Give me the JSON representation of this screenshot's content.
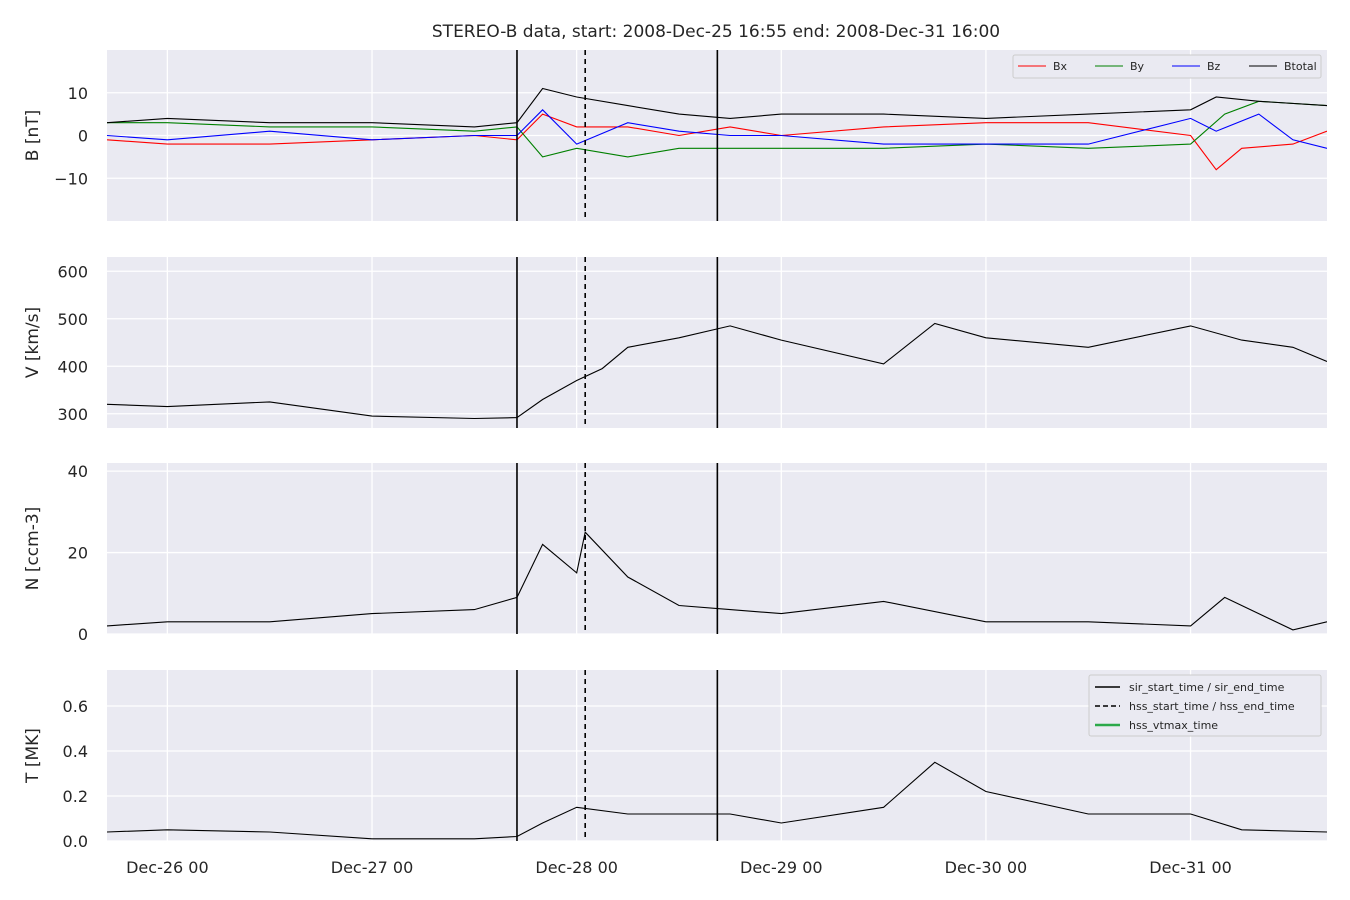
{
  "chart_data": {
    "type": "line",
    "title": "STEREO-B data, start: 2008-Dec-25 16:55  end: 2008-Dec-31 16:00",
    "x_range": [
      "2008-12-25T16:55",
      "2008-12-31T16:00"
    ],
    "x_ticks": [
      {
        "t": "2008-12-26T00:00",
        "label": "Dec-26 00"
      },
      {
        "t": "2008-12-27T00:00",
        "label": "Dec-27 00"
      },
      {
        "t": "2008-12-28T00:00",
        "label": "Dec-28 00"
      },
      {
        "t": "2008-12-29T00:00",
        "label": "Dec-29 00"
      },
      {
        "t": "2008-12-30T00:00",
        "label": "Dec-30 00"
      },
      {
        "t": "2008-12-31T00:00",
        "label": "Dec-31 00"
      }
    ],
    "markers": {
      "sir_start_time": "2008-12-27T17:00",
      "sir_end_time": "2008-12-28T16:30",
      "hss_start_time": "2008-12-28T01:00"
    },
    "legend_marker_labels": [
      "sir_start_time / sir_end_time",
      "hss_start_time / hss_end_time",
      "hss_vtmax_time"
    ],
    "grid": true,
    "panels": [
      {
        "id": "B",
        "ylabel": "B [nT]",
        "ylim": [
          -20,
          20
        ],
        "yticks": [
          {
            "v": 10,
            "label": "10"
          },
          {
            "v": 0,
            "label": "0"
          },
          {
            "v": -10,
            "label": "−10"
          }
        ],
        "legend": "top-right",
        "series": [
          {
            "name": "Bx",
            "color": "#ff0000",
            "points": [
              [
                "2008-12-25T16:55",
                -1
              ],
              [
                "2008-12-26T00:00",
                -2
              ],
              [
                "2008-12-26T12:00",
                -2
              ],
              [
                "2008-12-27T00:00",
                -1
              ],
              [
                "2008-12-27T12:00",
                0
              ],
              [
                "2008-12-27T17:00",
                -1
              ],
              [
                "2008-12-27T20:00",
                5
              ],
              [
                "2008-12-28T00:00",
                2
              ],
              [
                "2008-12-28T06:00",
                2
              ],
              [
                "2008-12-28T12:00",
                0
              ],
              [
                "2008-12-28T18:00",
                2
              ],
              [
                "2008-12-29T00:00",
                0
              ],
              [
                "2008-12-29T12:00",
                2
              ],
              [
                "2008-12-30T00:00",
                3
              ],
              [
                "2008-12-30T12:00",
                3
              ],
              [
                "2008-12-31T00:00",
                0
              ],
              [
                "2008-12-31T03:00",
                -8
              ],
              [
                "2008-12-31T06:00",
                -3
              ],
              [
                "2008-12-31T12:00",
                -2
              ],
              [
                "2008-12-31T16:00",
                1
              ]
            ]
          },
          {
            "name": "By",
            "color": "#008000",
            "points": [
              [
                "2008-12-25T16:55",
                3
              ],
              [
                "2008-12-26T00:00",
                3
              ],
              [
                "2008-12-26T12:00",
                2
              ],
              [
                "2008-12-27T00:00",
                2
              ],
              [
                "2008-12-27T12:00",
                1
              ],
              [
                "2008-12-27T17:00",
                2
              ],
              [
                "2008-12-27T20:00",
                -5
              ],
              [
                "2008-12-28T00:00",
                -3
              ],
              [
                "2008-12-28T06:00",
                -5
              ],
              [
                "2008-12-28T12:00",
                -3
              ],
              [
                "2008-12-28T18:00",
                -3
              ],
              [
                "2008-12-29T00:00",
                -3
              ],
              [
                "2008-12-29T12:00",
                -3
              ],
              [
                "2008-12-30T00:00",
                -2
              ],
              [
                "2008-12-30T12:00",
                -3
              ],
              [
                "2008-12-31T00:00",
                -2
              ],
              [
                "2008-12-31T04:00",
                5
              ],
              [
                "2008-12-31T08:00",
                8
              ],
              [
                "2008-12-31T16:00",
                7
              ]
            ]
          },
          {
            "name": "Bz",
            "color": "#0000ff",
            "points": [
              [
                "2008-12-25T16:55",
                0
              ],
              [
                "2008-12-26T00:00",
                -1
              ],
              [
                "2008-12-26T12:00",
                1
              ],
              [
                "2008-12-27T00:00",
                -1
              ],
              [
                "2008-12-27T12:00",
                0
              ],
              [
                "2008-12-27T17:00",
                0
              ],
              [
                "2008-12-27T20:00",
                6
              ],
              [
                "2008-12-28T00:00",
                -2
              ],
              [
                "2008-12-28T06:00",
                3
              ],
              [
                "2008-12-28T12:00",
                1
              ],
              [
                "2008-12-28T18:00",
                0
              ],
              [
                "2008-12-29T00:00",
                0
              ],
              [
                "2008-12-29T12:00",
                -2
              ],
              [
                "2008-12-30T00:00",
                -2
              ],
              [
                "2008-12-30T12:00",
                -2
              ],
              [
                "2008-12-31T00:00",
                4
              ],
              [
                "2008-12-31T03:00",
                1
              ],
              [
                "2008-12-31T08:00",
                5
              ],
              [
                "2008-12-31T12:00",
                -1
              ],
              [
                "2008-12-31T16:00",
                -3
              ]
            ]
          },
          {
            "name": "Btotal",
            "color": "#000000",
            "points": [
              [
                "2008-12-25T16:55",
                3
              ],
              [
                "2008-12-26T00:00",
                4
              ],
              [
                "2008-12-26T12:00",
                3
              ],
              [
                "2008-12-27T00:00",
                3
              ],
              [
                "2008-12-27T12:00",
                2
              ],
              [
                "2008-12-27T17:00",
                3
              ],
              [
                "2008-12-27T20:00",
                11
              ],
              [
                "2008-12-28T00:00",
                9
              ],
              [
                "2008-12-28T06:00",
                7
              ],
              [
                "2008-12-28T12:00",
                5
              ],
              [
                "2008-12-28T18:00",
                4
              ],
              [
                "2008-12-29T00:00",
                5
              ],
              [
                "2008-12-29T12:00",
                5
              ],
              [
                "2008-12-30T00:00",
                4
              ],
              [
                "2008-12-30T12:00",
                5
              ],
              [
                "2008-12-31T00:00",
                6
              ],
              [
                "2008-12-31T03:00",
                9
              ],
              [
                "2008-12-31T08:00",
                8
              ],
              [
                "2008-12-31T16:00",
                7
              ]
            ]
          }
        ]
      },
      {
        "id": "V",
        "ylabel": "V [km/s]",
        "ylim": [
          270,
          630
        ],
        "yticks": [
          {
            "v": 600,
            "label": "600"
          },
          {
            "v": 500,
            "label": "500"
          },
          {
            "v": 400,
            "label": "400"
          },
          {
            "v": 300,
            "label": "300"
          }
        ],
        "series": [
          {
            "name": "V",
            "color": "#000000",
            "points": [
              [
                "2008-12-25T16:55",
                320
              ],
              [
                "2008-12-26T00:00",
                315
              ],
              [
                "2008-12-26T12:00",
                325
              ],
              [
                "2008-12-27T00:00",
                295
              ],
              [
                "2008-12-27T12:00",
                290
              ],
              [
                "2008-12-27T17:00",
                292
              ],
              [
                "2008-12-27T20:00",
                330
              ],
              [
                "2008-12-28T00:00",
                370
              ],
              [
                "2008-12-28T03:00",
                395
              ],
              [
                "2008-12-28T06:00",
                440
              ],
              [
                "2008-12-28T12:00",
                460
              ],
              [
                "2008-12-28T18:00",
                485
              ],
              [
                "2008-12-29T00:00",
                455
              ],
              [
                "2008-12-29T12:00",
                405
              ],
              [
                "2008-12-29T18:00",
                490
              ],
              [
                "2008-12-30T00:00",
                460
              ],
              [
                "2008-12-30T12:00",
                440
              ],
              [
                "2008-12-31T00:00",
                485
              ],
              [
                "2008-12-31T06:00",
                455
              ],
              [
                "2008-12-31T12:00",
                440
              ],
              [
                "2008-12-31T16:00",
                410
              ]
            ]
          }
        ]
      },
      {
        "id": "N",
        "ylabel": "N [ccm-3]",
        "ylim": [
          0,
          42
        ],
        "yticks": [
          {
            "v": 40,
            "label": "40"
          },
          {
            "v": 20,
            "label": "20"
          },
          {
            "v": 0,
            "label": "0"
          }
        ],
        "series": [
          {
            "name": "N",
            "color": "#000000",
            "points": [
              [
                "2008-12-25T16:55",
                2
              ],
              [
                "2008-12-26T00:00",
                3
              ],
              [
                "2008-12-26T12:00",
                3
              ],
              [
                "2008-12-27T00:00",
                5
              ],
              [
                "2008-12-27T12:00",
                6
              ],
              [
                "2008-12-27T17:00",
                9
              ],
              [
                "2008-12-27T20:00",
                22
              ],
              [
                "2008-12-28T00:00",
                15
              ],
              [
                "2008-12-28T01:00",
                25
              ],
              [
                "2008-12-28T06:00",
                14
              ],
              [
                "2008-12-28T12:00",
                7
              ],
              [
                "2008-12-28T18:00",
                6
              ],
              [
                "2008-12-29T00:00",
                5
              ],
              [
                "2008-12-29T12:00",
                8
              ],
              [
                "2008-12-30T00:00",
                3
              ],
              [
                "2008-12-30T12:00",
                3
              ],
              [
                "2008-12-31T00:00",
                2
              ],
              [
                "2008-12-31T04:00",
                9
              ],
              [
                "2008-12-31T12:00",
                1
              ],
              [
                "2008-12-31T16:00",
                3
              ]
            ]
          }
        ]
      },
      {
        "id": "T",
        "ylabel": "T [MK]",
        "ylim": [
          0,
          0.76
        ],
        "yticks": [
          {
            "v": 0.6,
            "label": "0.6"
          },
          {
            "v": 0.4,
            "label": "0.4"
          },
          {
            "v": 0.2,
            "label": "0.2"
          },
          {
            "v": 0,
            "label": "0.0"
          }
        ],
        "legend": "top-right",
        "series": [
          {
            "name": "T",
            "color": "#000000",
            "points": [
              [
                "2008-12-25T16:55",
                0.04
              ],
              [
                "2008-12-26T00:00",
                0.05
              ],
              [
                "2008-12-26T12:00",
                0.04
              ],
              [
                "2008-12-27T00:00",
                0.01
              ],
              [
                "2008-12-27T12:00",
                0.01
              ],
              [
                "2008-12-27T17:00",
                0.02
              ],
              [
                "2008-12-27T20:00",
                0.08
              ],
              [
                "2008-12-28T00:00",
                0.15
              ],
              [
                "2008-12-28T06:00",
                0.12
              ],
              [
                "2008-12-28T12:00",
                0.12
              ],
              [
                "2008-12-28T18:00",
                0.12
              ],
              [
                "2008-12-29T00:00",
                0.08
              ],
              [
                "2008-12-29T12:00",
                0.15
              ],
              [
                "2008-12-29T18:00",
                0.35
              ],
              [
                "2008-12-30T00:00",
                0.22
              ],
              [
                "2008-12-30T12:00",
                0.12
              ],
              [
                "2008-12-31T00:00",
                0.12
              ],
              [
                "2008-12-31T06:00",
                0.05
              ],
              [
                "2008-12-31T16:00",
                0.04
              ]
            ]
          }
        ]
      }
    ]
  }
}
